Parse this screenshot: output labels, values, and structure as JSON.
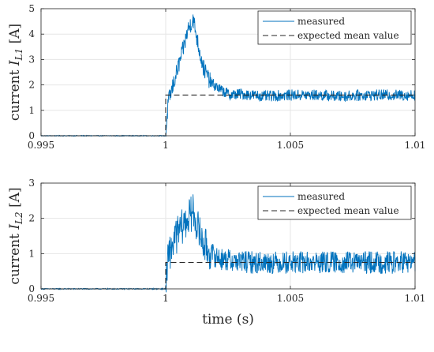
{
  "chart_data": [
    {
      "type": "line",
      "ylabel": "current",
      "ylabel_symbol": "I",
      "ylabel_subscript": "L1",
      "ylabel_unit": "[A]",
      "xlabel": "",
      "xlim": [
        0.995,
        1.01
      ],
      "ylim": [
        0,
        5
      ],
      "xticks": [
        "0.995",
        "1",
        "1.005",
        "1.01"
      ],
      "yticks": [
        "0",
        "1",
        "2",
        "3",
        "4",
        "5"
      ],
      "grid": true,
      "legend": "top-right",
      "series": [
        {
          "name": "measured",
          "style": "solid",
          "color": "#0072BD",
          "x": [
            0.995,
            0.996,
            0.997,
            0.998,
            0.999,
            1.0,
            1.0001,
            1.0003,
            1.0005,
            1.0007,
            1.0009,
            1.0011,
            1.0013,
            1.0015,
            1.0018,
            1.0022,
            1.0026,
            1.003,
            1.0035,
            1.004,
            1.005,
            1.006,
            1.007,
            1.008,
            1.009,
            1.01
          ],
          "y": [
            0,
            0,
            0,
            0,
            0,
            0,
            1.3,
            2.0,
            2.7,
            3.4,
            4.2,
            4.6,
            3.6,
            2.7,
            2.1,
            1.8,
            1.6,
            1.65,
            1.6,
            1.55,
            1.6,
            1.6,
            1.55,
            1.6,
            1.6,
            1.6
          ],
          "noise": 0.22
        },
        {
          "name": "expected mean value",
          "style": "dashed",
          "color": "#262626",
          "x": [
            0.995,
            1.0,
            1.0,
            1.01
          ],
          "y": [
            0,
            0,
            1.6,
            1.6
          ],
          "noise": 0
        }
      ]
    },
    {
      "type": "line",
      "ylabel": "current",
      "ylabel_symbol": "I",
      "ylabel_subscript": "L2",
      "ylabel_unit": "[A]",
      "xlabel": "time (s)",
      "xlim": [
        0.995,
        1.01
      ],
      "ylim": [
        0,
        3
      ],
      "xticks": [
        "0.995",
        "1",
        "1.005",
        "1.01"
      ],
      "yticks": [
        "0",
        "1",
        "2",
        "3"
      ],
      "grid": true,
      "legend": "top-right",
      "series": [
        {
          "name": "measured",
          "style": "solid",
          "color": "#0072BD",
          "x": [
            0.995,
            0.996,
            0.997,
            0.998,
            0.999,
            1.0,
            1.0001,
            1.0003,
            1.0005,
            1.0007,
            1.0009,
            1.0011,
            1.0013,
            1.0015,
            1.0018,
            1.0022,
            1.0026,
            1.003,
            1.0035,
            1.004,
            1.005,
            1.006,
            1.007,
            1.008,
            1.009,
            1.01
          ],
          "y": [
            0,
            0,
            0,
            0,
            0,
            0,
            0.9,
            1.3,
            1.6,
            1.8,
            2.0,
            2.2,
            1.7,
            1.3,
            1.0,
            0.85,
            0.8,
            0.78,
            0.75,
            0.75,
            0.75,
            0.75,
            0.75,
            0.75,
            0.75,
            0.75
          ],
          "noise": 0.32
        },
        {
          "name": "expected mean value",
          "style": "dashed",
          "color": "#262626",
          "x": [
            0.995,
            1.0,
            1.0,
            1.01
          ],
          "y": [
            0,
            0,
            0.75,
            0.75
          ],
          "noise": 0
        }
      ]
    }
  ]
}
